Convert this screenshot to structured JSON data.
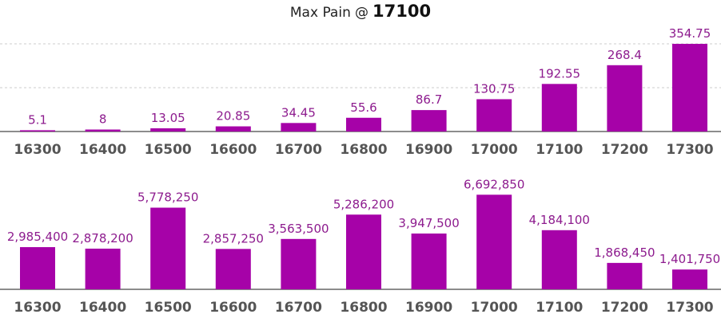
{
  "header": {
    "label": "Max Pain",
    "at": "@",
    "value": "17100"
  },
  "colors": {
    "bar": "#a602a8",
    "value_text": "#8d1b8e",
    "axis": "#666666",
    "grid": "#cccccc"
  },
  "chart_data": [
    {
      "type": "bar",
      "categories": [
        "16300",
        "16400",
        "16500",
        "16600",
        "16700",
        "16800",
        "16900",
        "17000",
        "17100",
        "17200",
        "17300"
      ],
      "values": [
        5.1,
        8,
        13.05,
        20.85,
        34.45,
        55.6,
        86.7,
        130.75,
        192.55,
        268.4,
        354.75
      ],
      "value_labels": [
        "5.1",
        "8",
        "13.05",
        "20.85",
        "34.45",
        "55.6",
        "86.7",
        "130.75",
        "192.55",
        "268.4",
        "354.75"
      ],
      "ylim": [
        0,
        400
      ],
      "grid": true,
      "legend": "none"
    },
    {
      "type": "bar",
      "categories": [
        "16300",
        "16400",
        "16500",
        "16600",
        "16700",
        "16800",
        "16900",
        "17000",
        "17100",
        "17200",
        "17300"
      ],
      "values": [
        2985400,
        2878200,
        5778250,
        2857250,
        3563500,
        5286200,
        3947500,
        6692850,
        4184100,
        1868450,
        1401750
      ],
      "value_labels": [
        "2,985,400",
        "2,878,200",
        "5,778,250",
        "2,857,250",
        "3,563,500",
        "5,286,200",
        "3,947,500",
        "6,692,850",
        "4,184,100",
        "1,868,450",
        "1,401,750"
      ],
      "ylim": [
        0,
        7500000
      ],
      "grid": false,
      "legend": "none"
    }
  ]
}
